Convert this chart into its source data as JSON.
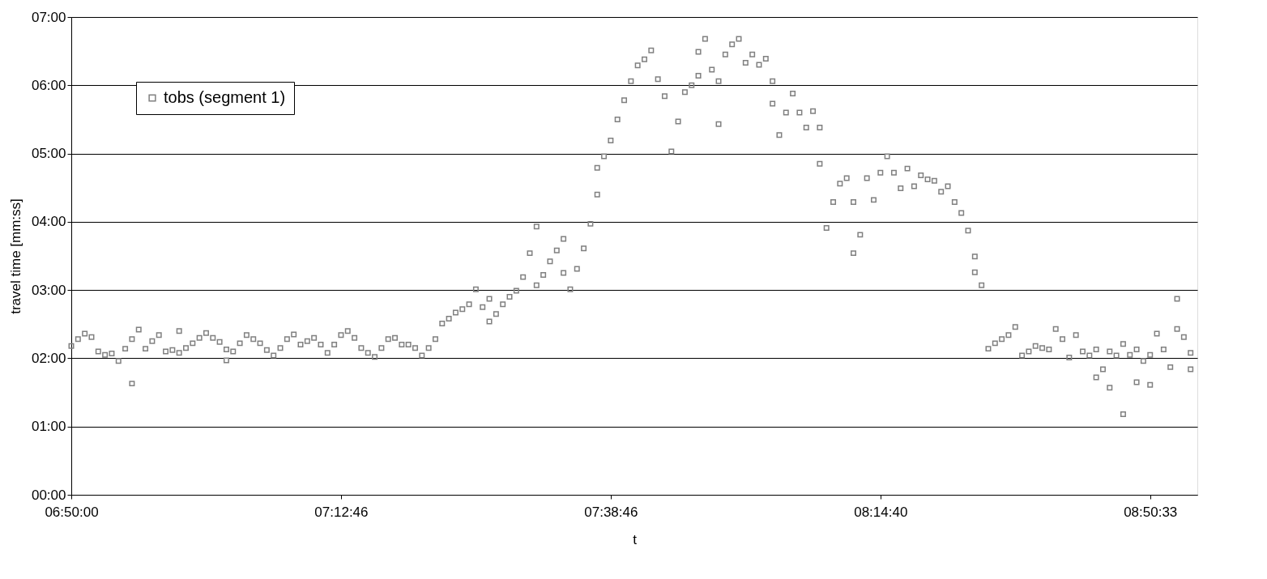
{
  "chart_data": {
    "type": "scatter",
    "xlabel": "t",
    "ylabel": "travel time [mm:ss]",
    "categories": [
      "06:50:00",
      null,
      null,
      null,
      null,
      null,
      null,
      null,
      null,
      null,
      null,
      null,
      null,
      null,
      null,
      null,
      null,
      null,
      null,
      null,
      null,
      null,
      null,
      null,
      null,
      null,
      null,
      null,
      null,
      null,
      null,
      null,
      null,
      null,
      null,
      null,
      null,
      null,
      null,
      null,
      "07:12:46",
      null,
      null,
      null,
      null,
      null,
      null,
      null,
      null,
      null,
      null,
      null,
      null,
      null,
      null,
      null,
      null,
      null,
      null,
      null,
      null,
      null,
      null,
      null,
      null,
      null,
      null,
      null,
      null,
      null,
      null,
      null,
      null,
      null,
      null,
      null,
      null,
      null,
      null,
      null,
      "07:38:46",
      null,
      null,
      null,
      null,
      null,
      null,
      null,
      null,
      null,
      null,
      null,
      null,
      null,
      null,
      null,
      null,
      null,
      null,
      null,
      null,
      null,
      null,
      null,
      null,
      null,
      null,
      null,
      null,
      null,
      null,
      null,
      null,
      null,
      null,
      null,
      null,
      null,
      null,
      null,
      "08:14:40",
      null,
      null,
      null,
      null,
      null,
      null,
      null,
      null,
      null,
      null,
      null,
      null,
      null,
      null,
      null,
      null,
      null,
      null,
      null,
      null,
      null,
      null,
      null,
      null,
      null,
      null,
      null,
      null,
      null,
      null,
      null,
      null,
      null,
      null,
      null,
      null,
      null,
      null,
      null,
      "08:50:33",
      null,
      null,
      null,
      null,
      null,
      null,
      null
    ],
    "ylim": [
      0,
      7
    ],
    "yticks": [
      {
        "value": 0,
        "label": "00:00"
      },
      {
        "value": 1,
        "label": "01:00"
      },
      {
        "value": 2,
        "label": "02:00"
      },
      {
        "value": 3,
        "label": "03:00"
      },
      {
        "value": 4,
        "label": "04:00"
      },
      {
        "value": 5,
        "label": "05:00"
      },
      {
        "value": 6,
        "label": "06:00"
      },
      {
        "value": 7,
        "label": "07:00"
      }
    ],
    "grid": "y",
    "legend": "top left",
    "marker": "square",
    "series": [
      {
        "name": "tobs (segment 1)",
        "color": "#808080",
        "values": [
          2.18,
          2.28,
          2.36,
          2.31,
          2.1,
          2.05,
          2.07,
          1.96,
          2.14,
          2.28,
          2.42,
          2.14,
          2.25,
          2.34,
          2.1,
          2.12,
          2.08,
          2.15,
          2.22,
          2.3,
          2.37,
          2.3,
          2.24,
          2.13,
          2.1,
          2.22,
          2.34,
          2.28,
          2.22,
          2.12,
          2.04,
          2.15,
          2.28,
          2.35,
          2.2,
          2.25,
          2.3,
          2.2,
          2.08,
          2.2,
          2.34,
          2.4,
          2.3,
          2.15,
          2.08,
          2.02,
          2.15,
          2.28,
          2.3,
          2.2,
          2.2,
          2.15,
          2.04,
          2.15,
          2.28,
          2.51,
          2.58,
          2.67,
          2.72,
          2.79,
          3.01,
          2.75,
          2.54,
          2.65,
          2.79,
          2.9,
          2.99,
          3.19,
          3.54,
          3.93,
          3.22,
          3.42,
          3.58,
          3.75,
          3.01,
          3.31,
          3.61,
          3.97,
          4.4,
          4.96,
          5.19,
          5.5,
          5.78,
          6.06,
          6.29,
          6.38,
          6.51,
          6.09,
          5.84,
          5.03,
          5.47,
          5.9,
          6.0,
          6.49,
          6.68,
          6.23,
          6.06,
          6.45,
          6.6,
          6.68,
          6.33,
          6.45,
          6.3,
          6.39,
          6.06,
          5.27,
          5.6,
          5.88,
          5.6,
          5.38,
          5.62,
          4.85,
          3.91,
          4.29,
          4.56,
          4.64,
          4.29,
          3.81,
          4.64,
          4.32,
          4.72,
          4.96,
          4.72,
          4.49,
          4.78,
          4.52,
          4.68,
          4.62,
          4.6,
          4.44,
          4.52,
          4.29,
          4.13,
          3.87,
          3.49,
          3.07,
          2.14,
          2.22,
          2.28,
          2.34,
          2.46,
          2.04,
          2.1,
          2.18,
          2.15,
          2.13,
          2.43,
          2.28,
          2.01,
          2.34,
          2.1,
          2.04,
          2.13,
          1.84,
          2.1,
          2.04,
          2.21,
          2.05,
          2.13,
          1.96,
          2.05,
          2.36,
          2.13,
          1.87,
          2.43,
          2.31,
          2.08,
          null
        ]
      },
      {
        "color": "#808080",
        "values": [
          null,
          null,
          null,
          null,
          null,
          null,
          null,
          null,
          null,
          1.63,
          null,
          null,
          null,
          null,
          null,
          null,
          2.4,
          null,
          null,
          null,
          null,
          null,
          null,
          1.97,
          null,
          null,
          null,
          null,
          null,
          null,
          null,
          null,
          null,
          null,
          null,
          null,
          null,
          null,
          null,
          null,
          null,
          null,
          null,
          null,
          null,
          null,
          null,
          null,
          null,
          null,
          null,
          null,
          null,
          null,
          null,
          null,
          null,
          null,
          null,
          null,
          null,
          null,
          2.87,
          null,
          null,
          null,
          null,
          null,
          null,
          3.07,
          null,
          null,
          null,
          3.25,
          null,
          null,
          null,
          null,
          4.79,
          null,
          null,
          null,
          null,
          null,
          null,
          null,
          null,
          null,
          null,
          null,
          null,
          null,
          null,
          6.14,
          null,
          null,
          5.43,
          null,
          null,
          null,
          null,
          null,
          null,
          null,
          5.73,
          null,
          null,
          null,
          null,
          null,
          null,
          5.38,
          null,
          null,
          null,
          null,
          3.54,
          null,
          null,
          null,
          null,
          null,
          null,
          null,
          null,
          null,
          null,
          null,
          null,
          null,
          null,
          null,
          null,
          null,
          3.26,
          null,
          null,
          null,
          null,
          null,
          null,
          null,
          null,
          null,
          null,
          null,
          null,
          null,
          null,
          null,
          null,
          null,
          1.72,
          null,
          1.57,
          null,
          1.18,
          null,
          1.65,
          null,
          1.61,
          null,
          null,
          null,
          2.87,
          null,
          1.84,
          null
        ]
      }
    ]
  }
}
